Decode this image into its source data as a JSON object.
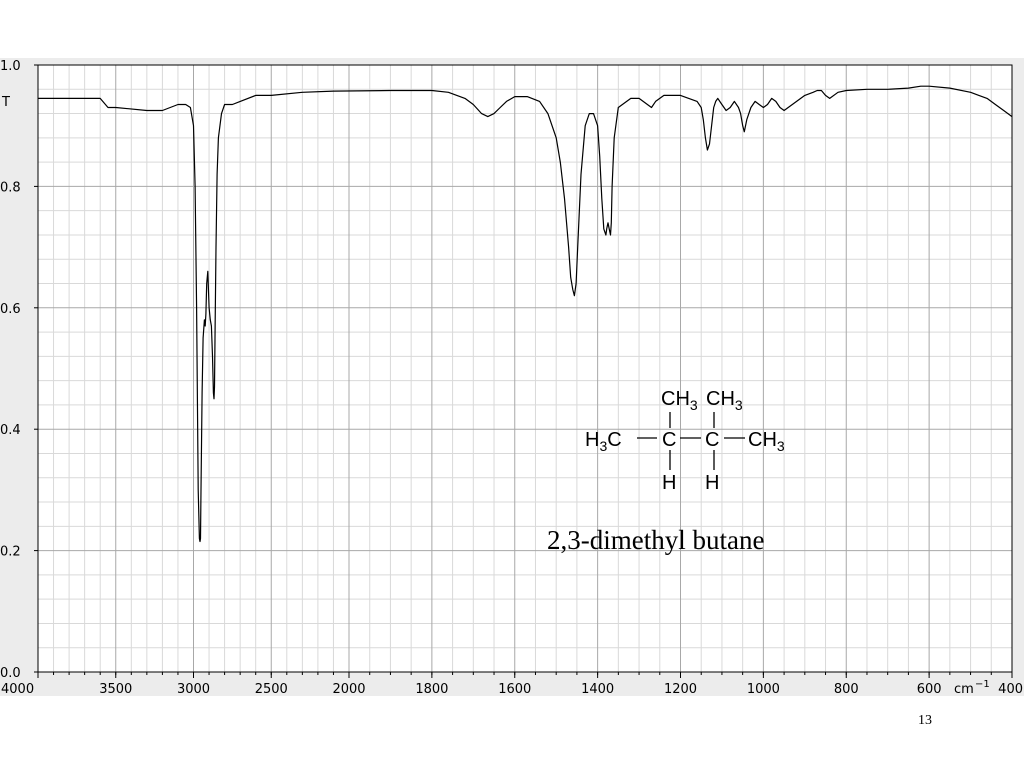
{
  "chart_data": {
    "type": "line",
    "y_axis_label": "T",
    "x_unit_label": "cm",
    "x_unit_exponent": "−1",
    "xlim": [
      4000,
      400
    ],
    "ylim": [
      0.0,
      1.0
    ],
    "x_ticks": [
      "4000",
      "3500",
      "3000",
      "2500",
      "2000",
      "1800",
      "1600",
      "1400",
      "1200",
      "1000",
      "800",
      "600",
      "400"
    ],
    "y_ticks": [
      "0.0",
      "0.2",
      "0.4",
      "0.6",
      "0.8",
      "1.0"
    ],
    "grid": true,
    "series": [
      {
        "x": [
          4000,
          3850,
          3800,
          3700,
          3600,
          3550,
          3500,
          3300,
          3250,
          3200,
          3150,
          3100,
          3050,
          3020,
          3000,
          2990,
          2980,
          2975,
          2970,
          2962,
          2958,
          2955,
          2952,
          2945,
          2938,
          2930,
          2925,
          2920,
          2915,
          2908,
          2900,
          2892,
          2885,
          2878,
          2872,
          2868,
          2865,
          2862,
          2855,
          2848,
          2840,
          2820,
          2800,
          2750,
          2700,
          2600,
          2500,
          2300,
          2100,
          1900,
          1800,
          1760,
          1720,
          1700,
          1680,
          1665,
          1650,
          1635,
          1620,
          1600,
          1570,
          1540,
          1520,
          1500,
          1490,
          1480,
          1470,
          1465,
          1460,
          1456,
          1452,
          1448,
          1440,
          1430,
          1420,
          1410,
          1400,
          1395,
          1390,
          1385,
          1380,
          1378,
          1375,
          1372,
          1369,
          1367,
          1365,
          1360,
          1350,
          1320,
          1300,
          1280,
          1270,
          1260,
          1240,
          1200,
          1180,
          1160,
          1150,
          1145,
          1140,
          1135,
          1130,
          1125,
          1120,
          1115,
          1110,
          1100,
          1090,
          1080,
          1070,
          1060,
          1055,
          1050,
          1046,
          1040,
          1030,
          1020,
          1010,
          1000,
          990,
          980,
          970,
          960,
          950,
          900,
          880,
          870,
          860,
          850,
          840,
          820,
          800,
          750,
          700,
          650,
          620,
          600,
          550,
          500,
          480,
          460,
          440,
          420,
          400
        ],
        "y": [
          0.945,
          0.945,
          0.945,
          0.945,
          0.945,
          0.93,
          0.93,
          0.925,
          0.925,
          0.925,
          0.93,
          0.935,
          0.935,
          0.93,
          0.9,
          0.8,
          0.6,
          0.45,
          0.3,
          0.22,
          0.215,
          0.22,
          0.3,
          0.46,
          0.55,
          0.58,
          0.57,
          0.59,
          0.64,
          0.66,
          0.6,
          0.58,
          0.57,
          0.52,
          0.46,
          0.45,
          0.47,
          0.55,
          0.7,
          0.82,
          0.88,
          0.92,
          0.935,
          0.935,
          0.94,
          0.95,
          0.95,
          0.955,
          0.957,
          0.958,
          0.958,
          0.955,
          0.945,
          0.935,
          0.92,
          0.915,
          0.92,
          0.93,
          0.94,
          0.948,
          0.948,
          0.94,
          0.92,
          0.88,
          0.84,
          0.78,
          0.7,
          0.65,
          0.63,
          0.62,
          0.64,
          0.7,
          0.82,
          0.9,
          0.92,
          0.92,
          0.9,
          0.85,
          0.78,
          0.73,
          0.72,
          0.73,
          0.74,
          0.73,
          0.72,
          0.74,
          0.8,
          0.88,
          0.93,
          0.945,
          0.945,
          0.935,
          0.93,
          0.94,
          0.95,
          0.95,
          0.945,
          0.94,
          0.93,
          0.91,
          0.88,
          0.86,
          0.87,
          0.9,
          0.93,
          0.94,
          0.945,
          0.935,
          0.925,
          0.93,
          0.94,
          0.93,
          0.92,
          0.9,
          0.89,
          0.91,
          0.93,
          0.94,
          0.935,
          0.93,
          0.935,
          0.945,
          0.94,
          0.93,
          0.925,
          0.95,
          0.955,
          0.958,
          0.958,
          0.95,
          0.945,
          0.955,
          0.958,
          0.96,
          0.96,
          0.962,
          0.965,
          0.965,
          0.962,
          0.955,
          0.95,
          0.945,
          0.935,
          0.925,
          0.915
        ]
      }
    ]
  },
  "annotation": {
    "structure": {
      "top_ch3_left": "CH",
      "top_ch3_left_sub": "3",
      "top_ch3_right": "CH",
      "top_ch3_right_sub": "3",
      "left_h": "H",
      "left_h_sub": "3",
      "left_c": "C",
      "c1": "C",
      "c2": "C",
      "right_ch": "CH",
      "right_ch_sub": "3",
      "h1": "H",
      "h2": "H"
    },
    "compound_name": "2,3-dimethyl butane"
  },
  "slide_number": "13"
}
